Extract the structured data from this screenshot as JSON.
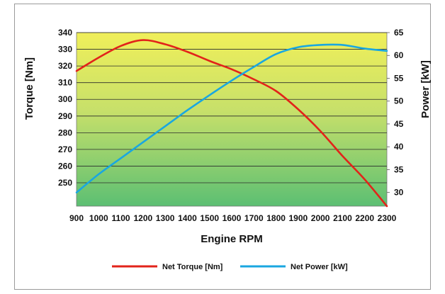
{
  "chart_data": {
    "type": "line",
    "xlabel": "Engine RPM",
    "ylabel_left": "Torque [Nm]",
    "ylabel_right": "Power [kW]",
    "x_ticks": [
      "900",
      "1000",
      "1100",
      "1200",
      "1300",
      "1400",
      "1500",
      "1600",
      "1700",
      "1800",
      "1900",
      "2000",
      "2100",
      "2200",
      "2300"
    ],
    "y_left_ticks": [
      "250",
      "260",
      "270",
      "280",
      "290",
      "300",
      "310",
      "320",
      "330",
      "340"
    ],
    "y_right_ticks": [
      "30",
      "35",
      "40",
      "45",
      "50",
      "55",
      "60",
      "65"
    ],
    "xlim": [
      900,
      2300
    ],
    "ylim_left": [
      236,
      340
    ],
    "ylim_right": [
      27,
      65
    ],
    "grid": true,
    "legend_position": "bottom",
    "series": [
      {
        "name": "Net Torque [Nm]",
        "axis": "left",
        "color": "#e2231a",
        "x": [
          900,
          1000,
          1100,
          1200,
          1300,
          1400,
          1500,
          1600,
          1700,
          1800,
          1900,
          2000,
          2100,
          2200,
          2300
        ],
        "y": [
          317,
          325,
          332,
          335.5,
          333,
          328.5,
          323,
          318,
          312,
          305,
          294,
          281,
          266,
          252,
          236
        ]
      },
      {
        "name": "Net Power [kW]",
        "axis": "right",
        "color": "#1aa7e0",
        "x": [
          900,
          1000,
          1100,
          1200,
          1300,
          1400,
          1500,
          1600,
          1700,
          1800,
          1900,
          2000,
          2100,
          2200,
          2300
        ],
        "y": [
          30,
          34,
          37.5,
          41,
          44.5,
          48,
          51.3,
          54.5,
          57.5,
          60.3,
          61.8,
          62.3,
          62.3,
          61.5,
          61
        ]
      }
    ]
  }
}
